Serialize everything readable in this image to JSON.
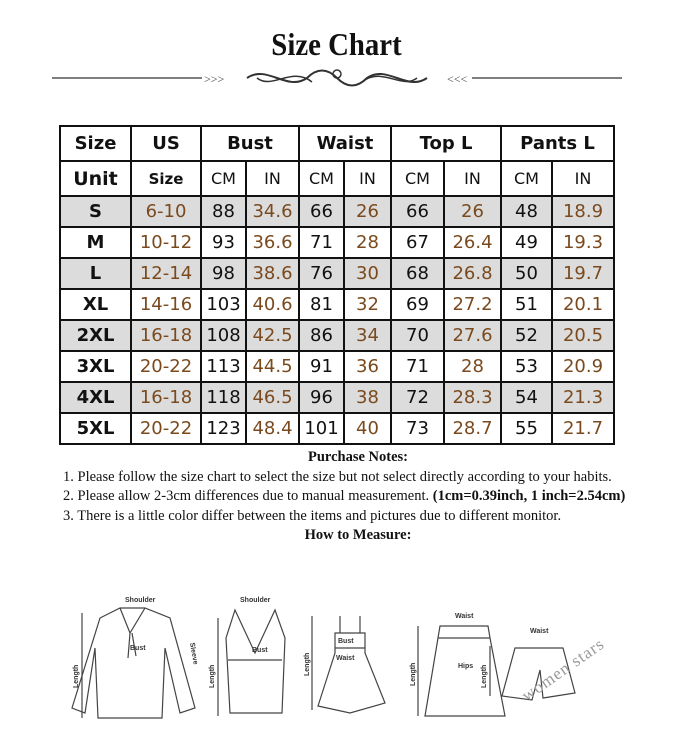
{
  "title": "Size Chart",
  "table": {
    "headers": [
      "Size",
      "US",
      "Bust",
      "Waist",
      "Top L",
      "Pants L"
    ],
    "unit_row": [
      "Unit",
      "Size",
      "CM",
      "IN",
      "CM",
      "IN",
      "CM",
      "IN",
      "CM",
      "IN"
    ],
    "rows": [
      [
        "S",
        "6-10",
        "88",
        "34.6",
        "66",
        "26",
        "66",
        "26",
        "48",
        "18.9"
      ],
      [
        "M",
        "10-12",
        "93",
        "36.6",
        "71",
        "28",
        "67",
        "26.4",
        "49",
        "19.3"
      ],
      [
        "L",
        "12-14",
        "98",
        "38.6",
        "76",
        "30",
        "68",
        "26.8",
        "50",
        "19.7"
      ],
      [
        "XL",
        "14-16",
        "103",
        "40.6",
        "81",
        "32",
        "69",
        "27.2",
        "51",
        "20.1"
      ],
      [
        "2XL",
        "16-18",
        "108",
        "42.5",
        "86",
        "34",
        "70",
        "27.6",
        "52",
        "20.5"
      ],
      [
        "3XL",
        "20-22",
        "113",
        "44.5",
        "91",
        "36",
        "71",
        "28",
        "53",
        "20.9"
      ],
      [
        "4XL",
        "16-18",
        "118",
        "46.5",
        "96",
        "38",
        "72",
        "28.3",
        "54",
        "21.3"
      ],
      [
        "5XL",
        "20-22",
        "123",
        "48.4",
        "101",
        "40",
        "73",
        "28.7",
        "55",
        "21.7"
      ]
    ]
  },
  "colors": {
    "accent_text": "#7a4a1e",
    "shaded_row": "#dcdcdc"
  },
  "notes": {
    "heading": "Purchase Notes:",
    "item1": "1. Please follow the size chart to select the size but not select directly according to your habits.",
    "item2": "2. Please allow 2-3cm differences due to manual measurement. ",
    "item2_bold": "(1cm=0.39inch, 1 inch=2.54cm)",
    "item3": "3. There is a little color differ between the items and pictures due to different monitor.",
    "measure_heading": "How to Measure:"
  },
  "diagrams": {
    "shoulder": "Shoulder",
    "bust": "Bust",
    "sleeve": "Sleeve",
    "length": "Length",
    "waist": "Waist",
    "hips": "Hips"
  },
  "watermark": "women stars"
}
